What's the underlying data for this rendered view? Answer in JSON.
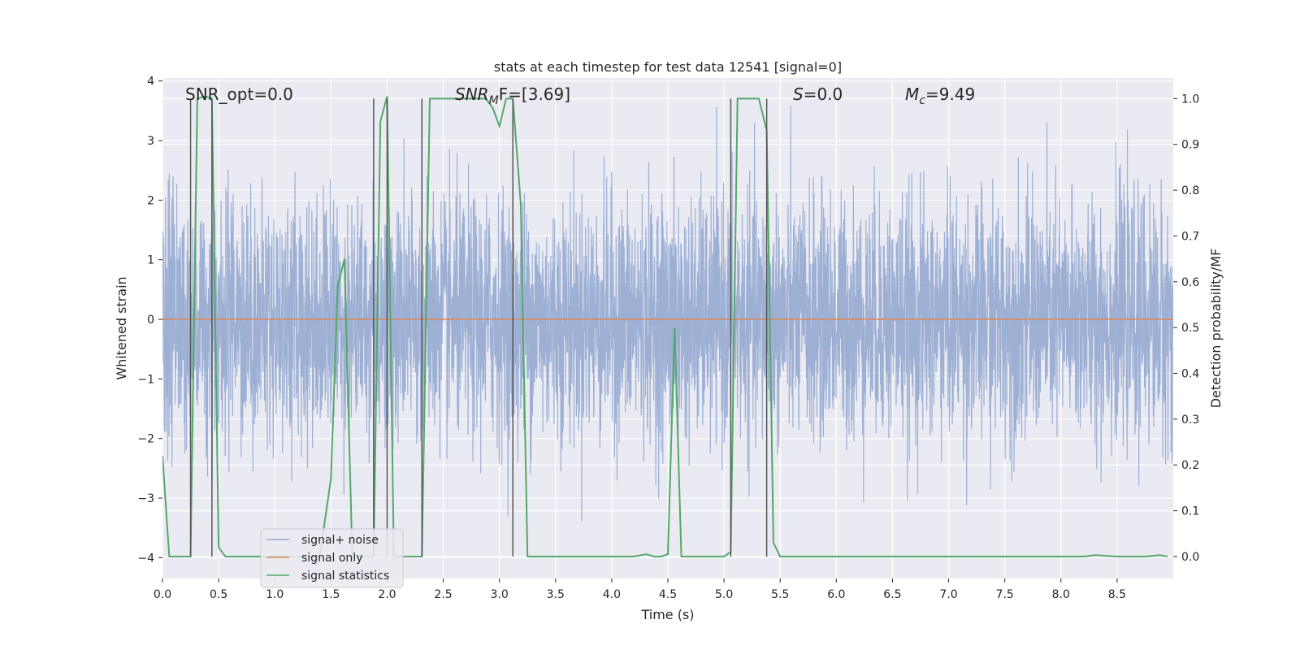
{
  "chart_data": {
    "type": "line",
    "title": "stats at each timestep for test data 12541 [signal=0]",
    "xlabel": "Time (s)",
    "ylabel": "Whitened strain",
    "ylabel_right": "Detection probability/MF",
    "xlim": [
      0.0,
      9.0
    ],
    "ylim": [
      -4.35,
      4.05
    ],
    "ylim_right": [
      -0.048,
      1.045
    ],
    "xticks": [
      0.0,
      0.5,
      1.0,
      1.5,
      2.0,
      2.5,
      3.0,
      3.5,
      4.0,
      4.5,
      5.0,
      5.5,
      6.0,
      6.5,
      7.0,
      7.5,
      8.0,
      8.5
    ],
    "xtick_labels": [
      "0.0",
      "0.5",
      "1.0",
      "1.5",
      "2.0",
      "2.5",
      "3.0",
      "3.5",
      "4.0",
      "4.5",
      "5.0",
      "5.5",
      "6.0",
      "6.5",
      "7.0",
      "7.5",
      "8.0",
      "8.5"
    ],
    "yticks": [
      4,
      3,
      2,
      1,
      0,
      -1,
      -2,
      -3,
      -4
    ],
    "ytick_labels": [
      "4",
      "3",
      "2",
      "1",
      "0",
      "−1",
      "−2",
      "−3",
      "−4"
    ],
    "yticks_right": [
      1.0,
      0.9,
      0.8,
      0.7,
      0.6,
      0.5,
      0.4,
      0.3,
      0.2,
      0.1,
      0.0
    ],
    "ytick_labels_right": [
      "1.0",
      "0.9",
      "0.8",
      "0.7",
      "0.6",
      "0.5",
      "0.4",
      "0.3",
      "0.2",
      "0.1",
      "0.0"
    ],
    "annotations": {
      "snr_opt": "SNR_opt=0.0",
      "snr_mf_sym": "SNR",
      "snr_mf_sub": "M",
      "snr_mf_rest": "F=[3.69]",
      "s_sym": "S",
      "s_rest": "=0.0",
      "mc_sym": "M",
      "mc_sub": "c",
      "mc_rest": "=9.49"
    },
    "series": [
      {
        "name": "signal+ noise",
        "color": "#8fa6cf",
        "kind": "noise",
        "sample_rate_hz": 512,
        "sigma": 1.0,
        "seed": 12541
      },
      {
        "name": "signal only",
        "color": "#dd8452",
        "x": [
          0.0,
          9.0
        ],
        "y": [
          0.0,
          0.0
        ]
      },
      {
        "name": "signal statistics",
        "color": "#55a868",
        "axis": "right",
        "x": [
          0.0,
          0.06,
          0.25,
          0.31,
          0.38,
          0.44,
          0.5,
          0.56,
          1.0,
          1.4,
          1.5,
          1.56,
          1.62,
          1.69,
          1.88,
          1.94,
          2.0,
          2.06,
          2.31,
          2.38,
          2.5,
          2.75,
          2.88,
          2.94,
          3.0,
          3.06,
          3.12,
          3.19,
          3.25,
          3.31,
          4.0,
          4.19,
          4.31,
          4.38,
          4.44,
          4.5,
          4.56,
          4.62,
          5.0,
          5.06,
          5.12,
          5.31,
          5.38,
          5.44,
          5.5,
          5.56,
          6.0,
          7.0,
          8.0,
          8.2,
          8.31,
          8.5,
          8.75,
          8.88,
          8.95
        ],
        "y": [
          0.22,
          0.0,
          0.0,
          1.0,
          1.005,
          1.0,
          0.02,
          0.0,
          0.0,
          0.0,
          0.17,
          0.59,
          0.65,
          0.0,
          0.0,
          0.95,
          1.005,
          0.0,
          0.0,
          1.0,
          1.0,
          1.0,
          1.0,
          0.98,
          0.94,
          1.0,
          1.0,
          0.77,
          0.0,
          0.0,
          0.0,
          0.0,
          0.005,
          0.0,
          0.0,
          0.005,
          0.5,
          0.0,
          0.0,
          0.01,
          1.0,
          1.0,
          0.93,
          0.03,
          0.0,
          0.0,
          0.0,
          0.0,
          0.0,
          0.0,
          0.003,
          0.0,
          0.0,
          0.003,
          0.0
        ]
      }
    ],
    "vlines_x": [
      0.25,
      0.44,
      1.88,
      2.0,
      2.31,
      3.12,
      5.06,
      5.38
    ]
  }
}
